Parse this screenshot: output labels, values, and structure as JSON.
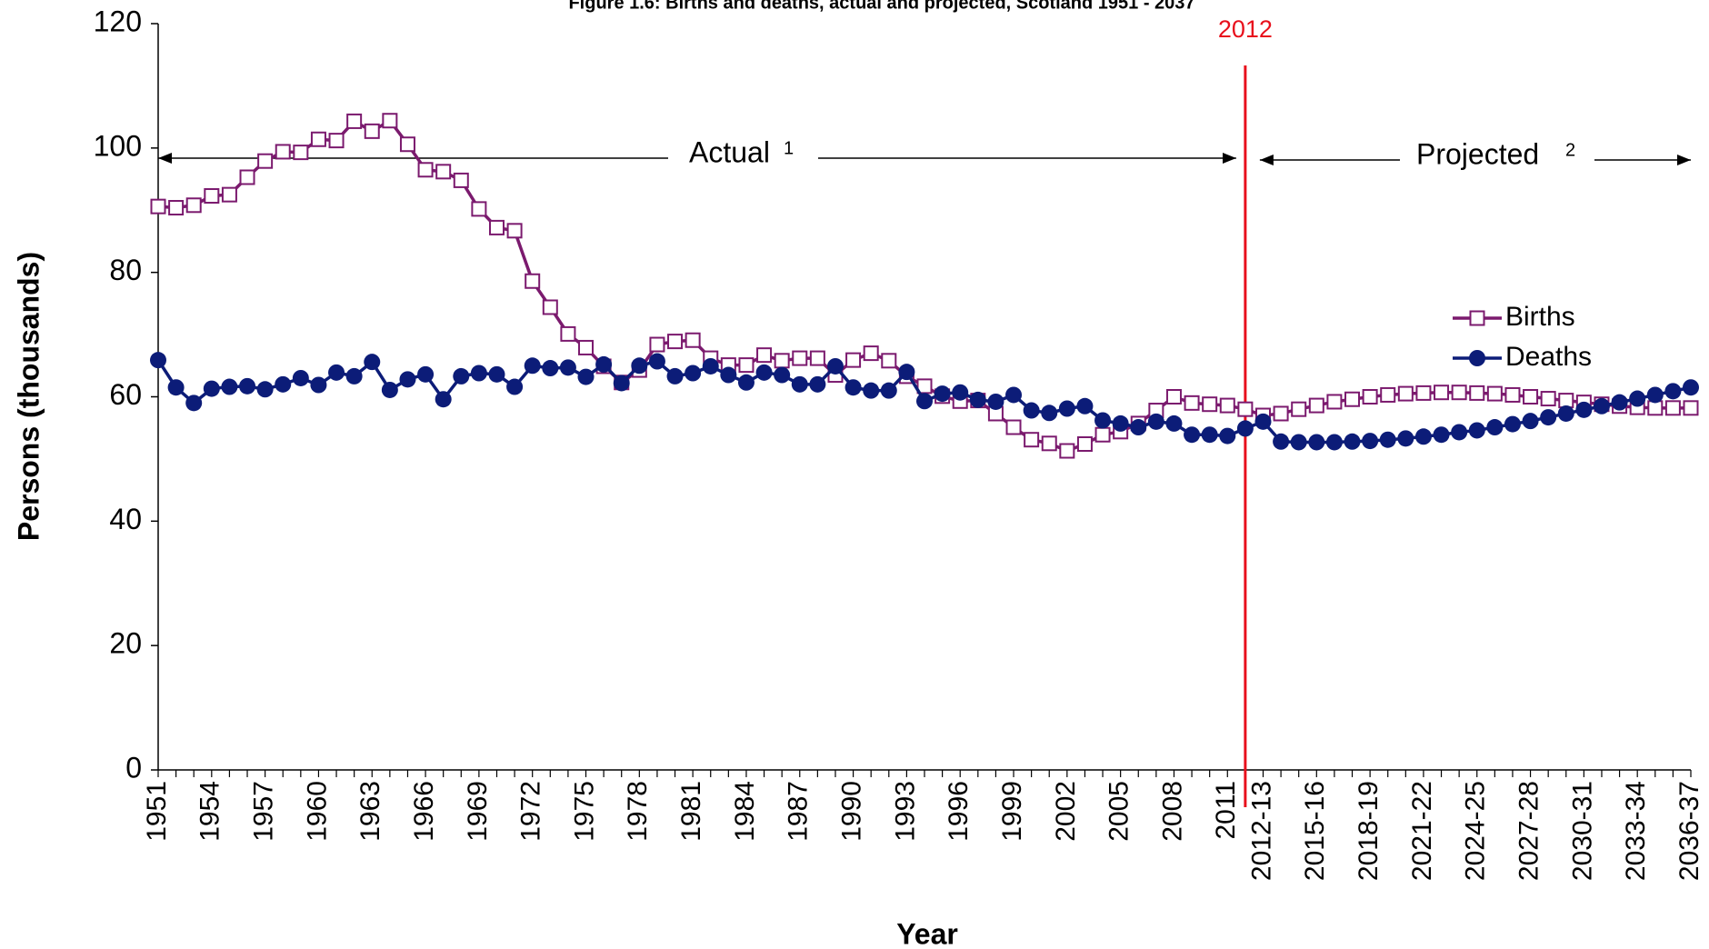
{
  "chart_data": {
    "type": "line",
    "title": "Figure 1.6: Births and deaths, actual and projected, Scotland 1951 - 2037",
    "x_label": "Year",
    "y_label": "Persons (thousands)",
    "categories": [
      "1951",
      null,
      null,
      "1954",
      null,
      null,
      "1957",
      null,
      null,
      "1960",
      null,
      null,
      "1963",
      null,
      null,
      "1966",
      null,
      null,
      "1969",
      null,
      null,
      "1972",
      null,
      null,
      "1975",
      null,
      null,
      "1978",
      null,
      null,
      "1981",
      null,
      null,
      "1984",
      null,
      null,
      "1987",
      null,
      null,
      "1990",
      null,
      null,
      "1993",
      null,
      null,
      "1996",
      null,
      null,
      "1999",
      null,
      null,
      "2002",
      null,
      null,
      "2005",
      null,
      null,
      "2008",
      null,
      null,
      "2011",
      null,
      "2012-13",
      null,
      null,
      "2015-16",
      null,
      null,
      "2018-19",
      null,
      null,
      "2021-22",
      null,
      null,
      "2024-25",
      null,
      null,
      "2027-28",
      null,
      null,
      "2030-31",
      null,
      null,
      "2033-34",
      null,
      null,
      "2036-37"
    ],
    "series": [
      {
        "name": "Births",
        "color": "#7b1a6e",
        "marker": "square-open",
        "values": [
          90.6,
          90.4,
          90.8,
          92.3,
          92.5,
          95.3,
          97.9,
          99.4,
          99.3,
          101.4,
          101.2,
          104.3,
          102.7,
          104.4,
          100.6,
          96.5,
          96.2,
          94.8,
          90.2,
          87.2,
          86.7,
          78.6,
          74.4,
          70.1,
          67.9,
          64.9,
          62.3,
          64.3,
          68.4,
          68.9,
          69.1,
          66.2,
          65.1,
          65.1,
          66.7,
          65.8,
          66.2,
          66.2,
          63.5,
          65.9,
          67.0,
          65.8,
          63.3,
          61.7,
          60.1,
          59.3,
          59.4,
          57.3,
          55.1,
          53.1,
          52.5,
          51.3,
          52.4,
          53.9,
          54.4,
          55.7,
          57.8,
          60.0,
          59.0,
          58.8,
          58.6,
          58.0,
          57.0,
          57.3,
          58.0,
          58.6,
          59.2,
          59.6,
          60.0,
          60.3,
          60.5,
          60.6,
          60.7,
          60.7,
          60.6,
          60.5,
          60.3,
          60.0,
          59.7,
          59.4,
          59.1,
          58.8,
          58.5,
          58.3,
          58.2,
          58.2,
          58.2
        ]
      },
      {
        "name": "Deaths",
        "color": "#0c1c78",
        "marker": "circle",
        "values": [
          65.9,
          61.5,
          59.0,
          61.3,
          61.6,
          61.7,
          61.2,
          62.0,
          63.0,
          61.9,
          63.9,
          63.3,
          65.6,
          61.1,
          62.8,
          63.6,
          59.6,
          63.3,
          63.8,
          63.6,
          61.6,
          65.0,
          64.6,
          64.7,
          63.2,
          65.2,
          62.2,
          65.0,
          65.7,
          63.3,
          63.8,
          64.9,
          63.5,
          62.3,
          63.9,
          63.5,
          62.0,
          62.0,
          64.9,
          61.5,
          61.0,
          61.0,
          64.0,
          59.3,
          60.5,
          60.7,
          59.5,
          59.2,
          60.3,
          57.8,
          57.4,
          58.1,
          58.5,
          56.2,
          55.7,
          55.1,
          56.0,
          55.7,
          53.9,
          53.9,
          53.7,
          54.9,
          56.0,
          52.8,
          52.7,
          52.7,
          52.7,
          52.8,
          52.9,
          53.1,
          53.3,
          53.6,
          53.9,
          54.3,
          54.6,
          55.1,
          55.6,
          56.1,
          56.7,
          57.3,
          57.9,
          58.5,
          59.1,
          59.7,
          60.3,
          60.9,
          61.5
        ]
      }
    ],
    "ylim": [
      0,
      120
    ],
    "yticks": [
      0,
      20,
      40,
      60,
      80,
      100,
      120
    ],
    "grid": false,
    "legend": "right",
    "vline": {
      "label": "2012",
      "color": "#e8101c"
    },
    "annotations": {
      "actual": "Actual",
      "actual_note": "1",
      "projected": "Projected",
      "projected_note": "2"
    }
  }
}
